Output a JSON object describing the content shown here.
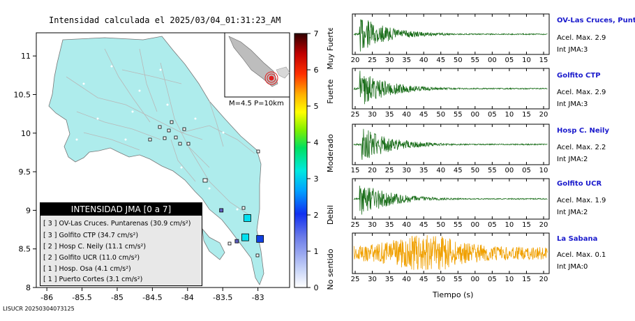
{
  "title": "Intensidad calculada el 2025/03/04_01:31:23_AM",
  "footer": "LISUCR 20250304073125",
  "map": {
    "x_ticks": [
      "-86",
      "-85.5",
      "-85",
      "-84.5",
      "-84",
      "-83.5",
      "-83"
    ],
    "y_ticks": [
      "11",
      "10.5",
      "10",
      "9.5",
      "9",
      "8.5",
      "8"
    ],
    "inset_label": "M=4.5  P=10km"
  },
  "colorbar": {
    "ticks": [
      "0",
      "1",
      "2",
      "3",
      "4",
      "5",
      "6",
      "7"
    ],
    "categories": [
      "No sentido",
      "Debil",
      "Moderado",
      "Fuerte",
      "Muy Fuerte"
    ]
  },
  "legend": {
    "header": "INTENSIDAD JMA [0 a 7]",
    "rows": [
      "[ 3 ]  OV-Las Cruces. Puntarenas (30.9 cm/s²)",
      "[ 3 ]  Golfito CTP (34.7 cm/s²)",
      "[ 2 ]  Hosp C. Neily (11.1 cm/s²)",
      "[ 2 ]  Golfito UCR (11.0 cm/s²)",
      "[ 1 ]  Hosp. Osa (4.1 cm/s²)",
      "[ 1 ]  Puerto Cortes (3.1 cm/s²)"
    ]
  },
  "traces": {
    "xlabel": "Tiempo (s)",
    "accel_prefix": "Acel. Max.",
    "int_prefix": "Int JMA:"
  },
  "chart_data": {
    "type": "line",
    "title": "Intensidad calculada el 2025/03/04_01:31:23_AM",
    "xlabel": "Tiempo (s)",
    "stations": [
      {
        "name": "OV-Las Cruces, Puntar",
        "acel_max": "2.9",
        "int_jma": "3",
        "color": "#1a6e1a",
        "tick_labels": [
          "20",
          "25",
          "30",
          "35",
          "40",
          "45",
          "50",
          "55",
          "00",
          "05",
          "10",
          "15"
        ]
      },
      {
        "name": "Golfito CTP",
        "acel_max": "2.9",
        "int_jma": "3",
        "color": "#1a6e1a",
        "tick_labels": [
          "25",
          "30",
          "35",
          "40",
          "45",
          "50",
          "55",
          "00",
          "05",
          "10",
          "15",
          "20"
        ]
      },
      {
        "name": "Hosp C. Neily",
        "acel_max": "2.2",
        "int_jma": "2",
        "color": "#1a6e1a",
        "tick_labels": [
          "15",
          "20",
          "25",
          "30",
          "35",
          "40",
          "45",
          "50",
          "55",
          "00",
          "05",
          "10"
        ]
      },
      {
        "name": "Golfito UCR",
        "acel_max": "1.9",
        "int_jma": "2",
        "color": "#1a6e1a",
        "tick_labels": [
          "25",
          "30",
          "35",
          "40",
          "45",
          "50",
          "55",
          "00",
          "05",
          "10",
          "15",
          "20"
        ]
      },
      {
        "name": "La Sabana",
        "acel_max": "0.1",
        "int_jma": "0",
        "color": "#f0a000",
        "tick_labels": [
          "25",
          "30",
          "35",
          "40",
          "45",
          "50",
          "55",
          "00",
          "05",
          "10",
          "15",
          "20"
        ]
      }
    ],
    "map_stations": [
      {
        "lon": -83.15,
        "lat": 8.9,
        "int_jma": 3,
        "color": "#00e0f0"
      },
      {
        "lon": -83.18,
        "lat": 8.65,
        "int_jma": 3,
        "color": "#00e0f0"
      },
      {
        "lon": -82.97,
        "lat": 8.63,
        "int_jma": 2,
        "color": "#1040e0"
      },
      {
        "lon": -83.52,
        "lat": 9.0,
        "int_jma": 1,
        "color": "#6060c0"
      },
      {
        "lon": -83.3,
        "lat": 8.6,
        "int_jma": 1,
        "color": "#6060c0"
      }
    ]
  }
}
